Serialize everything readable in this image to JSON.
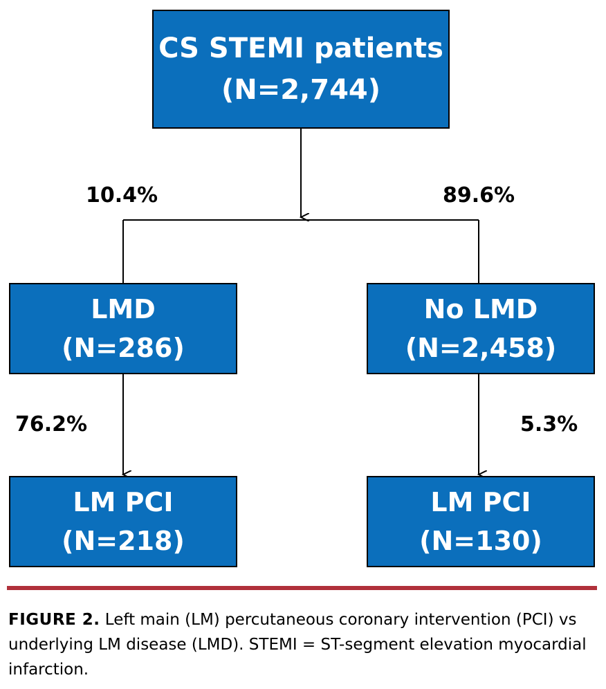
{
  "nodes": {
    "root": {
      "line1": "CS STEMI patients",
      "line2": "(N=2,744)"
    },
    "lmd": {
      "line1": "LMD",
      "line2": "(N=286)"
    },
    "no_lmd": {
      "line1": "No LMD",
      "line2": "(N=2,458)"
    },
    "lmd_pci": {
      "line1": "LM PCI",
      "line2": "(N=218)"
    },
    "no_lmd_pci": {
      "line1": "LM PCI",
      "line2": "(N=130)"
    }
  },
  "edges": {
    "root_to_lmd": "10.4%",
    "root_to_no_lmd": "89.6%",
    "lmd_to_pci": "76.2%",
    "no_lmd_to_pci": "5.3%"
  },
  "caption": {
    "label": "FIGURE 2.",
    "text": " Left main (LM) percutaneous coronary intervention (PCI) vs underlying LM disease (LMD). STEMI = ST-segment elevation myocardial infarction."
  },
  "colors": {
    "box_fill": "#0b6fbc",
    "rule": "#b0303a"
  }
}
